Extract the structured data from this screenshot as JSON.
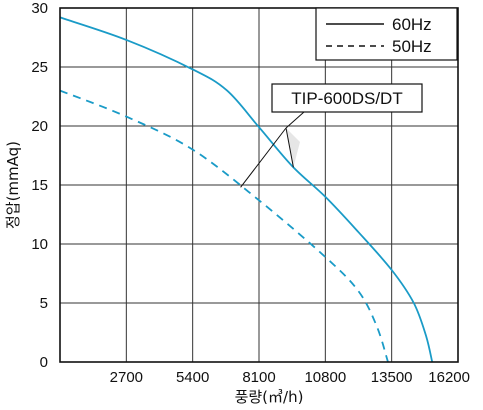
{
  "chart_data": {
    "type": "line",
    "title": "",
    "xlabel": "풍량(㎥/h)",
    "ylabel": "정압(mmAq)",
    "xlim": [
      0,
      16200
    ],
    "ylim": [
      0,
      30
    ],
    "x_ticks": [
      "2700",
      "5400",
      "8100",
      "10800",
      "13500",
      "16200"
    ],
    "y_ticks": [
      "0",
      "5",
      "10",
      "15",
      "20",
      "25",
      "30"
    ],
    "grid": true,
    "legend_position": "top-right",
    "annotation": "TIP-600DS/DT",
    "series": [
      {
        "name": "60Hz",
        "style": "solid",
        "color": "#1a9bc7",
        "x": [
          0,
          2700,
          5400,
          6800,
          8100,
          9450,
          10800,
          12150,
          13500,
          14400,
          14900,
          15150
        ],
        "y": [
          29.2,
          27.3,
          24.8,
          23.0,
          19.9,
          16.6,
          14.0,
          11.0,
          7.8,
          5.0,
          2.2,
          0
        ]
      },
      {
        "name": "50Hz",
        "style": "dashed",
        "color": "#1a9bc7",
        "x": [
          0,
          2700,
          5400,
          8100,
          10800,
          12150,
          12900,
          13350
        ],
        "y": [
          23.0,
          20.8,
          18.0,
          13.7,
          8.9,
          6.0,
          3.0,
          0
        ]
      }
    ]
  }
}
